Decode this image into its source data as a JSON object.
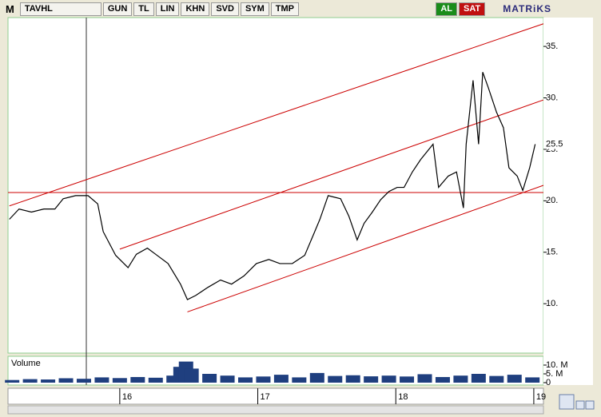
{
  "toolbar": {
    "logo": "M",
    "symbol": "TAVHL",
    "buttons": [
      "GUN",
      "TL",
      "LIN",
      "KHN",
      "SVD",
      "SYM",
      "TMP"
    ],
    "buy": "AL",
    "sell": "SAT",
    "brand": "MATRiKS"
  },
  "chart_data": [
    {
      "type": "line",
      "color": "#000000",
      "x": [
        2015.2,
        2015.27,
        2015.36,
        2015.45,
        2015.53,
        2015.59,
        2015.68,
        2015.77,
        2015.84,
        2015.88,
        2015.97,
        2016.06,
        2016.12,
        2016.2,
        2016.26,
        2016.35,
        2016.44,
        2016.49,
        2016.55,
        2016.64,
        2016.73,
        2016.81,
        2016.9,
        2016.99,
        2017.08,
        2017.16,
        2017.25,
        2017.34,
        2017.4,
        2017.45,
        2017.51,
        2017.6,
        2017.66,
        2017.72,
        2017.77,
        2017.83,
        2017.89,
        2017.95,
        2018.01,
        2018.06,
        2018.12,
        2018.18,
        2018.27,
        2018.31,
        2018.38,
        2018.44,
        2018.49,
        2018.51,
        2018.56,
        2018.6,
        2018.63,
        2018.67,
        2018.73,
        2018.78,
        2018.82,
        2018.88,
        2018.92,
        2018.97,
        2019.01
      ],
      "values": [
        18.2,
        19.2,
        18.9,
        19.2,
        19.2,
        20.2,
        20.5,
        20.5,
        19.7,
        17.0,
        14.7,
        13.5,
        14.8,
        15.4,
        14.8,
        13.9,
        11.9,
        10.4,
        10.8,
        11.6,
        12.3,
        11.9,
        12.7,
        13.9,
        14.3,
        13.9,
        13.9,
        14.7,
        16.6,
        18.2,
        20.5,
        20.2,
        18.5,
        16.2,
        17.8,
        18.9,
        20.1,
        20.9,
        21.3,
        21.3,
        22.8,
        24.0,
        25.5,
        21.3,
        22.4,
        22.8,
        19.3,
        25.5,
        31.7,
        25.5,
        32.5,
        31.0,
        28.6,
        27.1,
        23.2,
        22.4,
        21.0,
        23.2,
        25.5
      ],
      "last_value": 25.5,
      "xlim": [
        2015.19,
        2019.07
      ],
      "xticks": [
        {
          "value": 2016,
          "label": "16"
        },
        {
          "value": 2017,
          "label": "17"
        },
        {
          "value": 2018,
          "label": "18"
        },
        {
          "value": 2019,
          "label": "19"
        }
      ],
      "ylim": [
        5.2,
        37.8
      ],
      "yticks": [
        {
          "value": 10,
          "label": "10."
        },
        {
          "value": 15,
          "label": "15."
        },
        {
          "value": 20,
          "label": "20."
        },
        {
          "value": 25,
          "label": "25."
        },
        {
          "value": 30,
          "label": "30."
        },
        {
          "value": 35,
          "label": "35."
        }
      ],
      "trend_color": "#cc0000",
      "trend_lines": [
        {
          "x": [
            2015.2,
            2019.07
          ],
          "y": [
            19.5,
            37.2
          ]
        },
        {
          "x": [
            2016.0,
            2019.07
          ],
          "y": [
            15.3,
            29.8
          ]
        },
        {
          "x": [
            2016.49,
            2019.07
          ],
          "y": [
            9.2,
            21.5
          ]
        },
        {
          "x": [
            2015.19,
            2019.07
          ],
          "y": [
            20.8,
            20.8
          ]
        }
      ]
    },
    {
      "type": "bar",
      "title": "Volume",
      "color": "#1f3f7f",
      "x": [
        2015.22,
        2015.35,
        2015.48,
        2015.61,
        2015.74,
        2015.87,
        2016.0,
        2016.13,
        2016.26,
        2016.39,
        2016.44,
        2016.48,
        2016.52,
        2016.65,
        2016.78,
        2016.91,
        2017.04,
        2017.17,
        2017.3,
        2017.43,
        2017.56,
        2017.69,
        2017.82,
        2017.95,
        2018.08,
        2018.21,
        2018.34,
        2018.47,
        2018.6,
        2018.73,
        2018.86,
        2018.99
      ],
      "values": [
        1500000,
        2000000,
        1800000,
        2500000,
        2200000,
        3000000,
        2600000,
        3200000,
        2800000,
        4000000,
        9000000,
        12000000,
        8000000,
        5000000,
        4000000,
        3000000,
        3500000,
        4500000,
        3000000,
        5500000,
        3800000,
        4200000,
        3600000,
        4000000,
        3500000,
        4800000,
        3200000,
        4000000,
        5000000,
        3800000,
        4500000,
        3000000
      ],
      "xlim": [
        2015.19,
        2019.07
      ],
      "ylim": [
        0,
        15000000
      ],
      "yticks": [
        0,
        {
          "value": 5000000,
          "label": "5. M"
        },
        {
          "value": 10000000,
          "label": "10. M"
        }
      ]
    }
  ]
}
